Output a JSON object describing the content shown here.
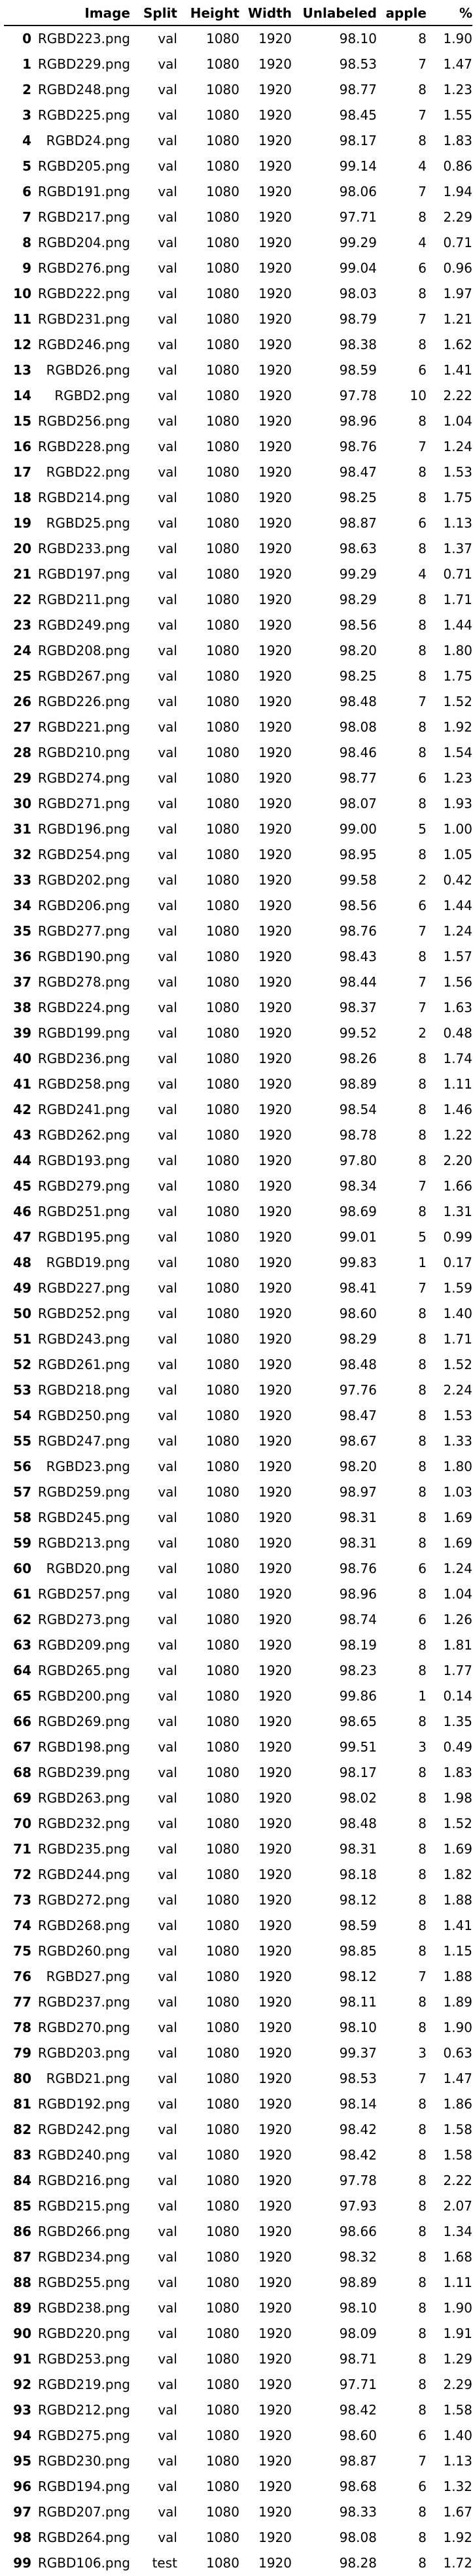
{
  "table": {
    "columns": [
      "",
      "Image",
      "Split",
      "Height",
      "Width",
      "Unlabeled",
      "apple",
      "%"
    ],
    "rows": [
      [
        0,
        "RGBD223.png",
        "val",
        1080,
        1920,
        "98.10",
        8,
        "1.90"
      ],
      [
        1,
        "RGBD229.png",
        "val",
        1080,
        1920,
        "98.53",
        7,
        "1.47"
      ],
      [
        2,
        "RGBD248.png",
        "val",
        1080,
        1920,
        "98.77",
        8,
        "1.23"
      ],
      [
        3,
        "RGBD225.png",
        "val",
        1080,
        1920,
        "98.45",
        7,
        "1.55"
      ],
      [
        4,
        "RGBD24.png",
        "val",
        1080,
        1920,
        "98.17",
        8,
        "1.83"
      ],
      [
        5,
        "RGBD205.png",
        "val",
        1080,
        1920,
        "99.14",
        4,
        "0.86"
      ],
      [
        6,
        "RGBD191.png",
        "val",
        1080,
        1920,
        "98.06",
        7,
        "1.94"
      ],
      [
        7,
        "RGBD217.png",
        "val",
        1080,
        1920,
        "97.71",
        8,
        "2.29"
      ],
      [
        8,
        "RGBD204.png",
        "val",
        1080,
        1920,
        "99.29",
        4,
        "0.71"
      ],
      [
        9,
        "RGBD276.png",
        "val",
        1080,
        1920,
        "99.04",
        6,
        "0.96"
      ],
      [
        10,
        "RGBD222.png",
        "val",
        1080,
        1920,
        "98.03",
        8,
        "1.97"
      ],
      [
        11,
        "RGBD231.png",
        "val",
        1080,
        1920,
        "98.79",
        7,
        "1.21"
      ],
      [
        12,
        "RGBD246.png",
        "val",
        1080,
        1920,
        "98.38",
        8,
        "1.62"
      ],
      [
        13,
        "RGBD26.png",
        "val",
        1080,
        1920,
        "98.59",
        6,
        "1.41"
      ],
      [
        14,
        "RGBD2.png",
        "val",
        1080,
        1920,
        "97.78",
        10,
        "2.22"
      ],
      [
        15,
        "RGBD256.png",
        "val",
        1080,
        1920,
        "98.96",
        8,
        "1.04"
      ],
      [
        16,
        "RGBD228.png",
        "val",
        1080,
        1920,
        "98.76",
        7,
        "1.24"
      ],
      [
        17,
        "RGBD22.png",
        "val",
        1080,
        1920,
        "98.47",
        8,
        "1.53"
      ],
      [
        18,
        "RGBD214.png",
        "val",
        1080,
        1920,
        "98.25",
        8,
        "1.75"
      ],
      [
        19,
        "RGBD25.png",
        "val",
        1080,
        1920,
        "98.87",
        6,
        "1.13"
      ],
      [
        20,
        "RGBD233.png",
        "val",
        1080,
        1920,
        "98.63",
        8,
        "1.37"
      ],
      [
        21,
        "RGBD197.png",
        "val",
        1080,
        1920,
        "99.29",
        4,
        "0.71"
      ],
      [
        22,
        "RGBD211.png",
        "val",
        1080,
        1920,
        "98.29",
        8,
        "1.71"
      ],
      [
        23,
        "RGBD249.png",
        "val",
        1080,
        1920,
        "98.56",
        8,
        "1.44"
      ],
      [
        24,
        "RGBD208.png",
        "val",
        1080,
        1920,
        "98.20",
        8,
        "1.80"
      ],
      [
        25,
        "RGBD267.png",
        "val",
        1080,
        1920,
        "98.25",
        8,
        "1.75"
      ],
      [
        26,
        "RGBD226.png",
        "val",
        1080,
        1920,
        "98.48",
        7,
        "1.52"
      ],
      [
        27,
        "RGBD221.png",
        "val",
        1080,
        1920,
        "98.08",
        8,
        "1.92"
      ],
      [
        28,
        "RGBD210.png",
        "val",
        1080,
        1920,
        "98.46",
        8,
        "1.54"
      ],
      [
        29,
        "RGBD274.png",
        "val",
        1080,
        1920,
        "98.77",
        6,
        "1.23"
      ],
      [
        30,
        "RGBD271.png",
        "val",
        1080,
        1920,
        "98.07",
        8,
        "1.93"
      ],
      [
        31,
        "RGBD196.png",
        "val",
        1080,
        1920,
        "99.00",
        5,
        "1.00"
      ],
      [
        32,
        "RGBD254.png",
        "val",
        1080,
        1920,
        "98.95",
        8,
        "1.05"
      ],
      [
        33,
        "RGBD202.png",
        "val",
        1080,
        1920,
        "99.58",
        2,
        "0.42"
      ],
      [
        34,
        "RGBD206.png",
        "val",
        1080,
        1920,
        "98.56",
        6,
        "1.44"
      ],
      [
        35,
        "RGBD277.png",
        "val",
        1080,
        1920,
        "98.76",
        7,
        "1.24"
      ],
      [
        36,
        "RGBD190.png",
        "val",
        1080,
        1920,
        "98.43",
        8,
        "1.57"
      ],
      [
        37,
        "RGBD278.png",
        "val",
        1080,
        1920,
        "98.44",
        7,
        "1.56"
      ],
      [
        38,
        "RGBD224.png",
        "val",
        1080,
        1920,
        "98.37",
        7,
        "1.63"
      ],
      [
        39,
        "RGBD199.png",
        "val",
        1080,
        1920,
        "99.52",
        2,
        "0.48"
      ],
      [
        40,
        "RGBD236.png",
        "val",
        1080,
        1920,
        "98.26",
        8,
        "1.74"
      ],
      [
        41,
        "RGBD258.png",
        "val",
        1080,
        1920,
        "98.89",
        8,
        "1.11"
      ],
      [
        42,
        "RGBD241.png",
        "val",
        1080,
        1920,
        "98.54",
        8,
        "1.46"
      ],
      [
        43,
        "RGBD262.png",
        "val",
        1080,
        1920,
        "98.78",
        8,
        "1.22"
      ],
      [
        44,
        "RGBD193.png",
        "val",
        1080,
        1920,
        "97.80",
        8,
        "2.20"
      ],
      [
        45,
        "RGBD279.png",
        "val",
        1080,
        1920,
        "98.34",
        7,
        "1.66"
      ],
      [
        46,
        "RGBD251.png",
        "val",
        1080,
        1920,
        "98.69",
        8,
        "1.31"
      ],
      [
        47,
        "RGBD195.png",
        "val",
        1080,
        1920,
        "99.01",
        5,
        "0.99"
      ],
      [
        48,
        "RGBD19.png",
        "val",
        1080,
        1920,
        "99.83",
        1,
        "0.17"
      ],
      [
        49,
        "RGBD227.png",
        "val",
        1080,
        1920,
        "98.41",
        7,
        "1.59"
      ],
      [
        50,
        "RGBD252.png",
        "val",
        1080,
        1920,
        "98.60",
        8,
        "1.40"
      ],
      [
        51,
        "RGBD243.png",
        "val",
        1080,
        1920,
        "98.29",
        8,
        "1.71"
      ],
      [
        52,
        "RGBD261.png",
        "val",
        1080,
        1920,
        "98.48",
        8,
        "1.52"
      ],
      [
        53,
        "RGBD218.png",
        "val",
        1080,
        1920,
        "97.76",
        8,
        "2.24"
      ],
      [
        54,
        "RGBD250.png",
        "val",
        1080,
        1920,
        "98.47",
        8,
        "1.53"
      ],
      [
        55,
        "RGBD247.png",
        "val",
        1080,
        1920,
        "98.67",
        8,
        "1.33"
      ],
      [
        56,
        "RGBD23.png",
        "val",
        1080,
        1920,
        "98.20",
        8,
        "1.80"
      ],
      [
        57,
        "RGBD259.png",
        "val",
        1080,
        1920,
        "98.97",
        8,
        "1.03"
      ],
      [
        58,
        "RGBD245.png",
        "val",
        1080,
        1920,
        "98.31",
        8,
        "1.69"
      ],
      [
        59,
        "RGBD213.png",
        "val",
        1080,
        1920,
        "98.31",
        8,
        "1.69"
      ],
      [
        60,
        "RGBD20.png",
        "val",
        1080,
        1920,
        "98.76",
        6,
        "1.24"
      ],
      [
        61,
        "RGBD257.png",
        "val",
        1080,
        1920,
        "98.96",
        8,
        "1.04"
      ],
      [
        62,
        "RGBD273.png",
        "val",
        1080,
        1920,
        "98.74",
        6,
        "1.26"
      ],
      [
        63,
        "RGBD209.png",
        "val",
        1080,
        1920,
        "98.19",
        8,
        "1.81"
      ],
      [
        64,
        "RGBD265.png",
        "val",
        1080,
        1920,
        "98.23",
        8,
        "1.77"
      ],
      [
        65,
        "RGBD200.png",
        "val",
        1080,
        1920,
        "99.86",
        1,
        "0.14"
      ],
      [
        66,
        "RGBD269.png",
        "val",
        1080,
        1920,
        "98.65",
        8,
        "1.35"
      ],
      [
        67,
        "RGBD198.png",
        "val",
        1080,
        1920,
        "99.51",
        3,
        "0.49"
      ],
      [
        68,
        "RGBD239.png",
        "val",
        1080,
        1920,
        "98.17",
        8,
        "1.83"
      ],
      [
        69,
        "RGBD263.png",
        "val",
        1080,
        1920,
        "98.02",
        8,
        "1.98"
      ],
      [
        70,
        "RGBD232.png",
        "val",
        1080,
        1920,
        "98.48",
        8,
        "1.52"
      ],
      [
        71,
        "RGBD235.png",
        "val",
        1080,
        1920,
        "98.31",
        8,
        "1.69"
      ],
      [
        72,
        "RGBD244.png",
        "val",
        1080,
        1920,
        "98.18",
        8,
        "1.82"
      ],
      [
        73,
        "RGBD272.png",
        "val",
        1080,
        1920,
        "98.12",
        8,
        "1.88"
      ],
      [
        74,
        "RGBD268.png",
        "val",
        1080,
        1920,
        "98.59",
        8,
        "1.41"
      ],
      [
        75,
        "RGBD260.png",
        "val",
        1080,
        1920,
        "98.85",
        8,
        "1.15"
      ],
      [
        76,
        "RGBD27.png",
        "val",
        1080,
        1920,
        "98.12",
        7,
        "1.88"
      ],
      [
        77,
        "RGBD237.png",
        "val",
        1080,
        1920,
        "98.11",
        8,
        "1.89"
      ],
      [
        78,
        "RGBD270.png",
        "val",
        1080,
        1920,
        "98.10",
        8,
        "1.90"
      ],
      [
        79,
        "RGBD203.png",
        "val",
        1080,
        1920,
        "99.37",
        3,
        "0.63"
      ],
      [
        80,
        "RGBD21.png",
        "val",
        1080,
        1920,
        "98.53",
        7,
        "1.47"
      ],
      [
        81,
        "RGBD192.png",
        "val",
        1080,
        1920,
        "98.14",
        8,
        "1.86"
      ],
      [
        82,
        "RGBD242.png",
        "val",
        1080,
        1920,
        "98.42",
        8,
        "1.58"
      ],
      [
        83,
        "RGBD240.png",
        "val",
        1080,
        1920,
        "98.42",
        8,
        "1.58"
      ],
      [
        84,
        "RGBD216.png",
        "val",
        1080,
        1920,
        "97.78",
        8,
        "2.22"
      ],
      [
        85,
        "RGBD215.png",
        "val",
        1080,
        1920,
        "97.93",
        8,
        "2.07"
      ],
      [
        86,
        "RGBD266.png",
        "val",
        1080,
        1920,
        "98.66",
        8,
        "1.34"
      ],
      [
        87,
        "RGBD234.png",
        "val",
        1080,
        1920,
        "98.32",
        8,
        "1.68"
      ],
      [
        88,
        "RGBD255.png",
        "val",
        1080,
        1920,
        "98.89",
        8,
        "1.11"
      ],
      [
        89,
        "RGBD238.png",
        "val",
        1080,
        1920,
        "98.10",
        8,
        "1.90"
      ],
      [
        90,
        "RGBD220.png",
        "val",
        1080,
        1920,
        "98.09",
        8,
        "1.91"
      ],
      [
        91,
        "RGBD253.png",
        "val",
        1080,
        1920,
        "98.71",
        8,
        "1.29"
      ],
      [
        92,
        "RGBD219.png",
        "val",
        1080,
        1920,
        "97.71",
        8,
        "2.29"
      ],
      [
        93,
        "RGBD212.png",
        "val",
        1080,
        1920,
        "98.42",
        8,
        "1.58"
      ],
      [
        94,
        "RGBD275.png",
        "val",
        1080,
        1920,
        "98.60",
        6,
        "1.40"
      ],
      [
        95,
        "RGBD230.png",
        "val",
        1080,
        1920,
        "98.87",
        7,
        "1.13"
      ],
      [
        96,
        "RGBD194.png",
        "val",
        1080,
        1920,
        "98.68",
        6,
        "1.32"
      ],
      [
        97,
        "RGBD207.png",
        "val",
        1080,
        1920,
        "98.33",
        8,
        "1.67"
      ],
      [
        98,
        "RGBD264.png",
        "val",
        1080,
        1920,
        "98.08",
        8,
        "1.92"
      ],
      [
        99,
        "RGBD106.png",
        "test",
        1080,
        1920,
        "98.28",
        8,
        "1.72"
      ]
    ]
  }
}
